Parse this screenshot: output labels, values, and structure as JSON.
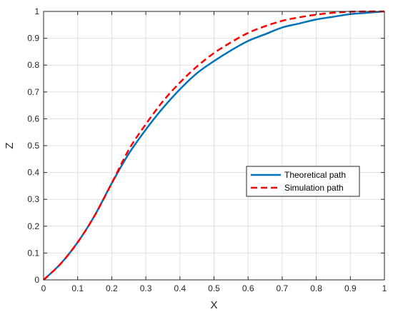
{
  "chart_data": {
    "type": "line",
    "xlabel": "X",
    "ylabel": "Z",
    "xlim": [
      0,
      1
    ],
    "ylim": [
      0,
      1
    ],
    "xticks": [
      "0",
      "0.1",
      "0.2",
      "0.3",
      "0.4",
      "0.5",
      "0.6",
      "0.7",
      "0.8",
      "0.9",
      "1"
    ],
    "yticks": [
      "0",
      "0.1",
      "0.2",
      "0.3",
      "0.4",
      "0.5",
      "0.6",
      "0.7",
      "0.8",
      "0.9",
      "1"
    ],
    "grid": true,
    "legend_position": "center-right",
    "series": [
      {
        "name": "Theoretical path",
        "color": "#0072BD",
        "style": "solid",
        "x": [
          0,
          0.05,
          0.1,
          0.15,
          0.2,
          0.25,
          0.3,
          0.35,
          0.4,
          0.45,
          0.5,
          0.55,
          0.6,
          0.65,
          0.7,
          0.75,
          0.8,
          0.85,
          0.9,
          0.95,
          1.0
        ],
        "y": [
          0,
          0.06,
          0.14,
          0.24,
          0.36,
          0.47,
          0.56,
          0.64,
          0.71,
          0.77,
          0.815,
          0.855,
          0.89,
          0.915,
          0.94,
          0.955,
          0.97,
          0.98,
          0.99,
          0.995,
          1.0
        ]
      },
      {
        "name": "Simulation path",
        "color": "#FF0000",
        "style": "dashed",
        "x": [
          0,
          0.05,
          0.1,
          0.15,
          0.2,
          0.25,
          0.3,
          0.35,
          0.4,
          0.45,
          0.5,
          0.55,
          0.6,
          0.65,
          0.7,
          0.75,
          0.8,
          0.85,
          0.9,
          0.95,
          1.0
        ],
        "y": [
          0,
          0.06,
          0.14,
          0.24,
          0.36,
          0.485,
          0.58,
          0.665,
          0.735,
          0.795,
          0.845,
          0.885,
          0.92,
          0.945,
          0.965,
          0.978,
          0.988,
          0.995,
          0.999,
          1.0,
          1.0
        ]
      }
    ]
  }
}
